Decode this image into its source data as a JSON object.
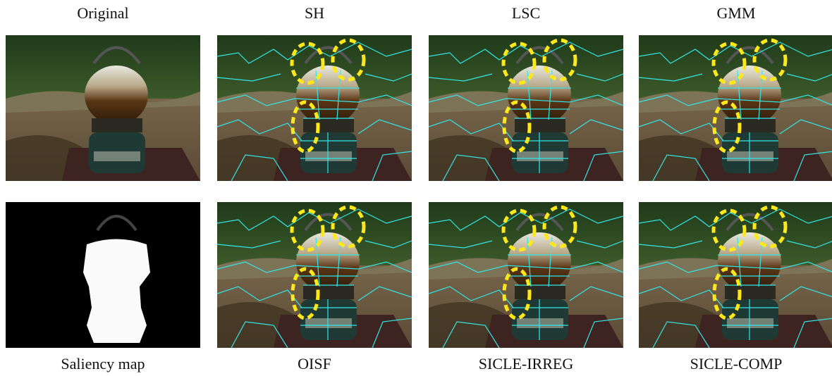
{
  "panels": [
    {
      "label": "Original"
    },
    {
      "label": "SH"
    },
    {
      "label": "LSC"
    },
    {
      "label": "GMM"
    },
    {
      "label": "Saliency map"
    },
    {
      "label": "OISF"
    },
    {
      "label": "SICLE-IRREG"
    },
    {
      "label": "SICLE-COMP"
    }
  ]
}
